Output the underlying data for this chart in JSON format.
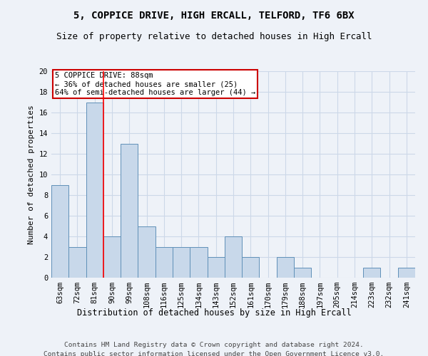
{
  "title": "5, COPPICE DRIVE, HIGH ERCALL, TELFORD, TF6 6BX",
  "subtitle": "Size of property relative to detached houses in High Ercall",
  "xlabel": "Distribution of detached houses by size in High Ercall",
  "ylabel": "Number of detached properties",
  "categories": [
    "63sqm",
    "72sqm",
    "81sqm",
    "90sqm",
    "99sqm",
    "108sqm",
    "116sqm",
    "125sqm",
    "134sqm",
    "143sqm",
    "152sqm",
    "161sqm",
    "170sqm",
    "179sqm",
    "188sqm",
    "197sqm",
    "205sqm",
    "214sqm",
    "223sqm",
    "232sqm",
    "241sqm"
  ],
  "values": [
    9,
    3,
    17,
    4,
    13,
    5,
    3,
    3,
    3,
    2,
    4,
    2,
    0,
    2,
    1,
    0,
    0,
    0,
    1,
    0,
    1
  ],
  "bar_color": "#c8d8ea",
  "bar_edge_color": "#6090b8",
  "bar_edge_width": 0.7,
  "red_line_x": 2.5,
  "annotation_text": "5 COPPICE DRIVE: 88sqm\n← 36% of detached houses are smaller (25)\n64% of semi-detached houses are larger (44) →",
  "annotation_box_facecolor": "#ffffff",
  "annotation_box_edge_color": "#cc0000",
  "ylim": [
    0,
    20
  ],
  "yticks": [
    0,
    2,
    4,
    6,
    8,
    10,
    12,
    14,
    16,
    18,
    20
  ],
  "grid_color": "#ccd8e8",
  "footer_line1": "Contains HM Land Registry data © Crown copyright and database right 2024.",
  "footer_line2": "Contains public sector information licensed under the Open Government Licence v3.0.",
  "title_fontsize": 10,
  "subtitle_fontsize": 9,
  "xlabel_fontsize": 8.5,
  "ylabel_fontsize": 8,
  "tick_fontsize": 7.5,
  "annotation_fontsize": 7.5,
  "footer_fontsize": 6.8,
  "background_color": "#eef2f8",
  "plot_bg_color": "#eef2f8"
}
